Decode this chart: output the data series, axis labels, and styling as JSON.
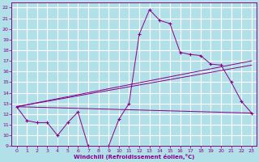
{
  "xlabel": "Windchill (Refroidissement éolien,°C)",
  "background_color": "#b2e0e8",
  "grid_color": "#ffffff",
  "line_color": "#880088",
  "xlim": [
    -0.5,
    23.5
  ],
  "ylim": [
    9,
    22.5
  ],
  "xticks": [
    0,
    1,
    2,
    3,
    4,
    5,
    6,
    7,
    8,
    9,
    10,
    11,
    12,
    13,
    14,
    15,
    16,
    17,
    18,
    19,
    20,
    21,
    22,
    23
  ],
  "yticks": [
    9,
    10,
    11,
    12,
    13,
    14,
    15,
    16,
    17,
    18,
    19,
    20,
    21,
    22
  ],
  "line1_x": [
    0,
    1,
    2,
    3,
    4,
    5,
    6,
    7,
    8,
    9,
    10,
    11,
    12,
    13,
    14,
    15,
    16,
    17,
    18,
    19,
    20,
    21,
    22,
    23
  ],
  "line1_y": [
    12.7,
    11.4,
    11.2,
    11.2,
    10.0,
    11.2,
    12.2,
    9.0,
    8.8,
    9.0,
    11.5,
    13.0,
    19.5,
    21.8,
    20.8,
    20.5,
    17.8,
    17.6,
    17.5,
    16.7,
    16.6,
    15.0,
    13.2,
    12.1
  ],
  "line2_x": [
    0,
    23
  ],
  "line2_y": [
    12.7,
    12.1
  ],
  "line3_x": [
    0,
    23
  ],
  "line3_y": [
    12.7,
    17.0
  ],
  "line4_x": [
    0,
    23
  ],
  "line4_y": [
    12.7,
    16.6
  ]
}
